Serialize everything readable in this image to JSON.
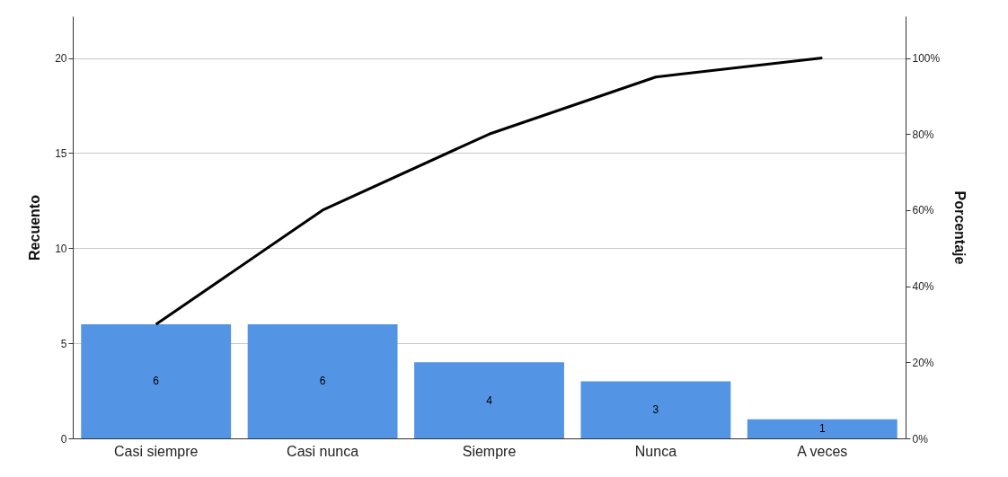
{
  "chart_data": {
    "type": "bar",
    "categories": [
      "Casi siempre",
      "Casi nunca",
      "Siempre",
      "Nunca",
      "A veces"
    ],
    "series": [
      {
        "color": "#5394e4",
        "values": [
          6,
          6,
          4,
          3,
          1
        ],
        "data_labels": true
      },
      {
        "type": "line",
        "axis": "y2",
        "color": "#000000",
        "values": [
          30,
          60,
          80,
          95,
          100
        ]
      }
    ],
    "ylabel": "Recuento",
    "y2label": "Porcentaje",
    "ylim": [
      0,
      22.2
    ],
    "yticks": [
      0,
      5,
      10,
      15,
      20
    ],
    "y2lim": [
      0,
      111
    ],
    "y2ticks": [
      {
        "value": 0,
        "label": "0%"
      },
      {
        "value": 20,
        "label": "20%"
      },
      {
        "value": 40,
        "label": "40%"
      },
      {
        "value": 60,
        "label": "60%"
      },
      {
        "value": 80,
        "label": "80%"
      },
      {
        "value": 100,
        "label": "100%"
      }
    ],
    "grid": "y"
  }
}
